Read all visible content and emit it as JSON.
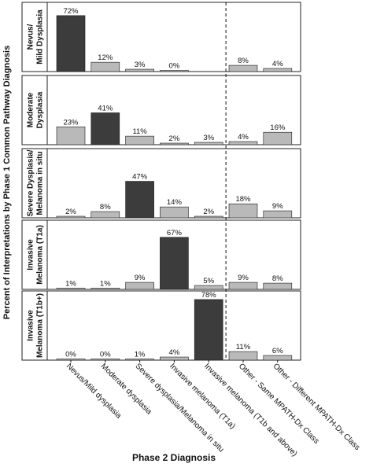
{
  "chart_data": {
    "type": "bar",
    "ylabel": "Percent of Interpretations by Phase 1 Common Pathway Diagnosis",
    "xlabel": "Phase 2 Diagnosis",
    "categories": [
      "Nevus/Mild dysplasia",
      "Moderate dysplasia",
      "Severe dysplasia/Melanoma in situ",
      "Invasive melanoma (T1a)",
      "Invasive melanoma (T1b and above)",
      "Other - Same MPATH-Dx Class",
      "Other - Different MPATH-Dx Class"
    ],
    "panels": [
      {
        "label_lines": [
          "Nevus/",
          "Mild Dysplasia"
        ],
        "values": [
          72,
          12,
          3,
          0,
          null,
          8,
          4
        ]
      },
      {
        "label_lines": [
          "Moderate",
          "Dysplasia"
        ],
        "values": [
          23,
          41,
          11,
          2,
          3,
          4,
          16
        ]
      },
      {
        "label_lines": [
          "Severe Dysplasia/",
          "Melanoma in situ"
        ],
        "values": [
          2,
          8,
          47,
          14,
          2,
          18,
          9
        ]
      },
      {
        "label_lines": [
          "Invasive",
          "Melanoma (T1a)"
        ],
        "values": [
          1,
          1,
          9,
          67,
          5,
          9,
          8
        ]
      },
      {
        "label_lines": [
          "Invasive",
          "Melanoma (T1b+)"
        ],
        "values": [
          0,
          0,
          1,
          4,
          78,
          11,
          6
        ]
      }
    ],
    "value_suffix": "%",
    "ylim": [
      0,
      85
    ],
    "dashed_separator_after_category": 5,
    "colors": {
      "diagonal": "#3c3c3c",
      "other": "#b9b9b9",
      "stroke": "#1a1a1a",
      "frame": "#222222"
    },
    "grid": false,
    "legend": "none"
  }
}
